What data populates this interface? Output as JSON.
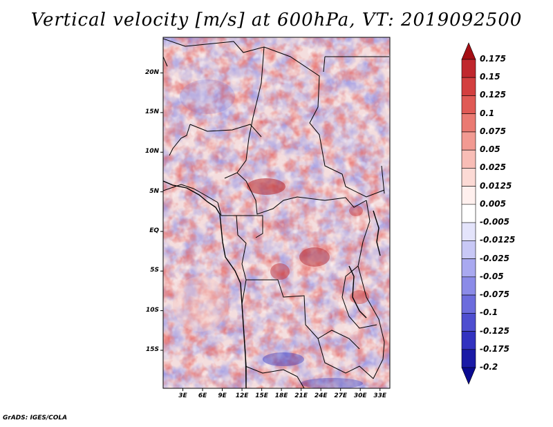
{
  "title": "Vertical velocity [m/s] at 600hPa, VT: 2019092500",
  "credit": "GrADS: IGES/COLA",
  "map": {
    "variable": "Vertical velocity",
    "units": "m/s",
    "level": "600hPa",
    "valid_time": "2019092500",
    "lat_labels": [
      "20N",
      "15N",
      "10N",
      "5N",
      "EQ",
      "5S",
      "10S",
      "15S"
    ],
    "lon_labels": [
      "3E",
      "6E",
      "9E",
      "12E",
      "15E",
      "18E",
      "21E",
      "24E",
      "27E",
      "30E",
      "33E"
    ],
    "lat_values": [
      20,
      15,
      10,
      5,
      0,
      -5,
      -10,
      -15
    ],
    "lon_values": [
      3,
      6,
      9,
      12,
      15,
      18,
      21,
      24,
      27,
      30,
      33
    ],
    "lon_range": [
      0,
      34.5
    ],
    "lat_range": [
      -19.8,
      24.5
    ]
  },
  "colorbar": {
    "labels": [
      "0.175",
      "0.15",
      "0.125",
      "0.1",
      "0.075",
      "0.05",
      "0.025",
      "0.0125",
      "0.005",
      "-0.005",
      "-0.0125",
      "-0.025",
      "-0.05",
      "-0.075",
      "-0.1",
      "-0.125",
      "-0.175",
      "-0.2"
    ],
    "colors": [
      "#a50f15",
      "#c0272d",
      "#d33f3f",
      "#e05a55",
      "#ea7a72",
      "#f29a92",
      "#f8bdb6",
      "#fcdad5",
      "#fff0ee",
      "#ffffff",
      "#e4e4fb",
      "#c8c8f6",
      "#a9a9f0",
      "#8b8be8",
      "#6c6cdd",
      "#4e4ed0",
      "#3232c0",
      "#1a1aa6",
      "#0a0a90"
    ]
  }
}
